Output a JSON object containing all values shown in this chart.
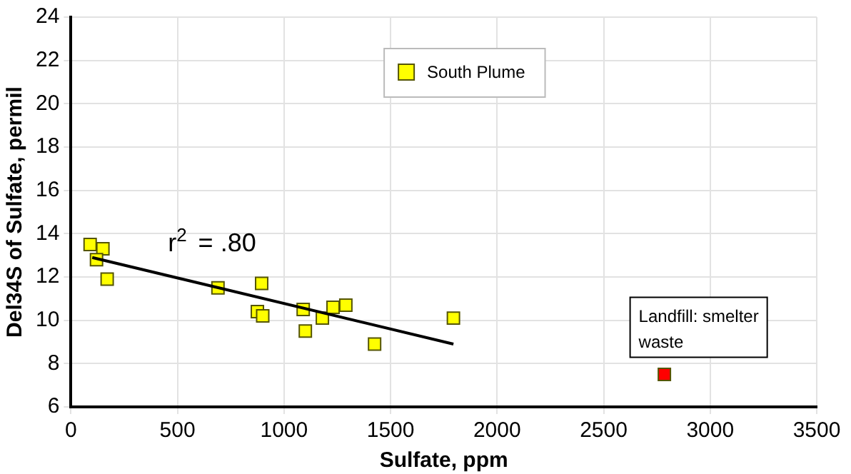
{
  "chart_data": {
    "type": "scatter",
    "xlabel": "Sulfate, ppm",
    "ylabel": "Del34S of Sulfate, permil",
    "xlim": [
      0,
      3500
    ],
    "xticks": [
      0,
      500,
      1000,
      1500,
      2000,
      2500,
      3000,
      3500
    ],
    "ylim": [
      6,
      24
    ],
    "yticks": [
      6,
      8,
      10,
      12,
      14,
      16,
      18,
      20,
      22,
      24
    ],
    "grid": true,
    "legend": "top",
    "marker": "square",
    "series": [
      {
        "name": "South Plume",
        "color": "#ffff00",
        "x": [
          90,
          150,
          120,
          170,
          690,
          895,
          875,
          900,
          1090,
          1100,
          1180,
          1230,
          1290,
          1425,
          1795
        ],
        "values": [
          13.5,
          13.3,
          12.8,
          11.9,
          11.5,
          11.7,
          10.4,
          10.2,
          10.5,
          9.5,
          10.1,
          10.6,
          10.7,
          8.9,
          10.1
        ]
      },
      {
        "color": "#ff0000",
        "x": [
          2785
        ],
        "values": [
          7.5
        ]
      },
      {
        "type": "line",
        "color": "#000000",
        "x": [
          100,
          1795
        ],
        "values": [
          12.9,
          8.9
        ],
        "marker": "none"
      }
    ],
    "annotations": [
      "r$^{2}$ = .80",
      {
        "text": "Landfill: smelter waste",
        "x": 2785,
        "y": 7.5
      }
    ]
  }
}
